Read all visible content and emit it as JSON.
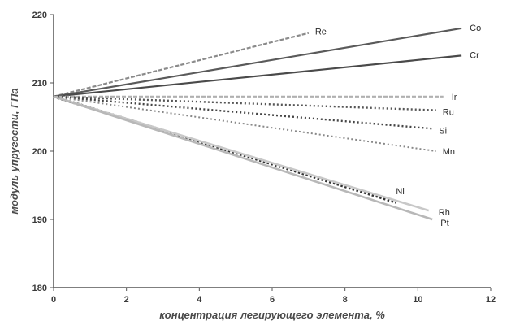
{
  "chart_data": {
    "type": "line",
    "xlabel": "концентрация легирующего элемента, %",
    "ylabel": "модуль упругости, ГПа",
    "xlim": [
      0,
      12
    ],
    "ylim": [
      180,
      220
    ],
    "xticks": [
      "0",
      "2",
      "4",
      "6",
      "8",
      "10",
      "12"
    ],
    "yticks": [
      "180",
      "190",
      "200",
      "210",
      "220"
    ],
    "grid": false,
    "legend": "inline labels at line ends",
    "series": [
      {
        "name": "Re",
        "x": [
          0,
          7
        ],
        "y": [
          208,
          217.3
        ],
        "style": "dashed-light",
        "color": "#8a8a8a"
      },
      {
        "name": "Co",
        "x": [
          0,
          11.2
        ],
        "y": [
          208,
          218
        ],
        "style": "solid",
        "color": "#5a5a5a"
      },
      {
        "name": "Cr",
        "x": [
          0,
          11.2
        ],
        "y": [
          208,
          214
        ],
        "style": "solid",
        "color": "#4a4a4a"
      },
      {
        "name": "Ir",
        "x": [
          0,
          10.7
        ],
        "y": [
          208,
          208
        ],
        "style": "dashed-light",
        "color": "#b0b0b0"
      },
      {
        "name": "Ru",
        "x": [
          0,
          10.5
        ],
        "y": [
          208,
          206
        ],
        "style": "dotted",
        "color": "#555555"
      },
      {
        "name": "Si",
        "x": [
          0,
          10.4
        ],
        "y": [
          208,
          203.3
        ],
        "style": "dotted",
        "color": "#444444"
      },
      {
        "name": "Mn",
        "x": [
          0,
          10.5
        ],
        "y": [
          208,
          200
        ],
        "style": "dotted-light",
        "color": "#888888"
      },
      {
        "name": "Ni",
        "x": [
          0,
          9.4
        ],
        "y": [
          208,
          192.5
        ],
        "style": "dotted-bold",
        "color": "#333333"
      },
      {
        "name": "Rh",
        "x": [
          0,
          10.3
        ],
        "y": [
          208,
          191.3
        ],
        "style": "solid-light",
        "color": "#c8c8c8"
      },
      {
        "name": "Pt",
        "x": [
          0,
          10.4
        ],
        "y": [
          208,
          190
        ],
        "style": "solid-light",
        "color": "#b8b8b8"
      }
    ]
  }
}
